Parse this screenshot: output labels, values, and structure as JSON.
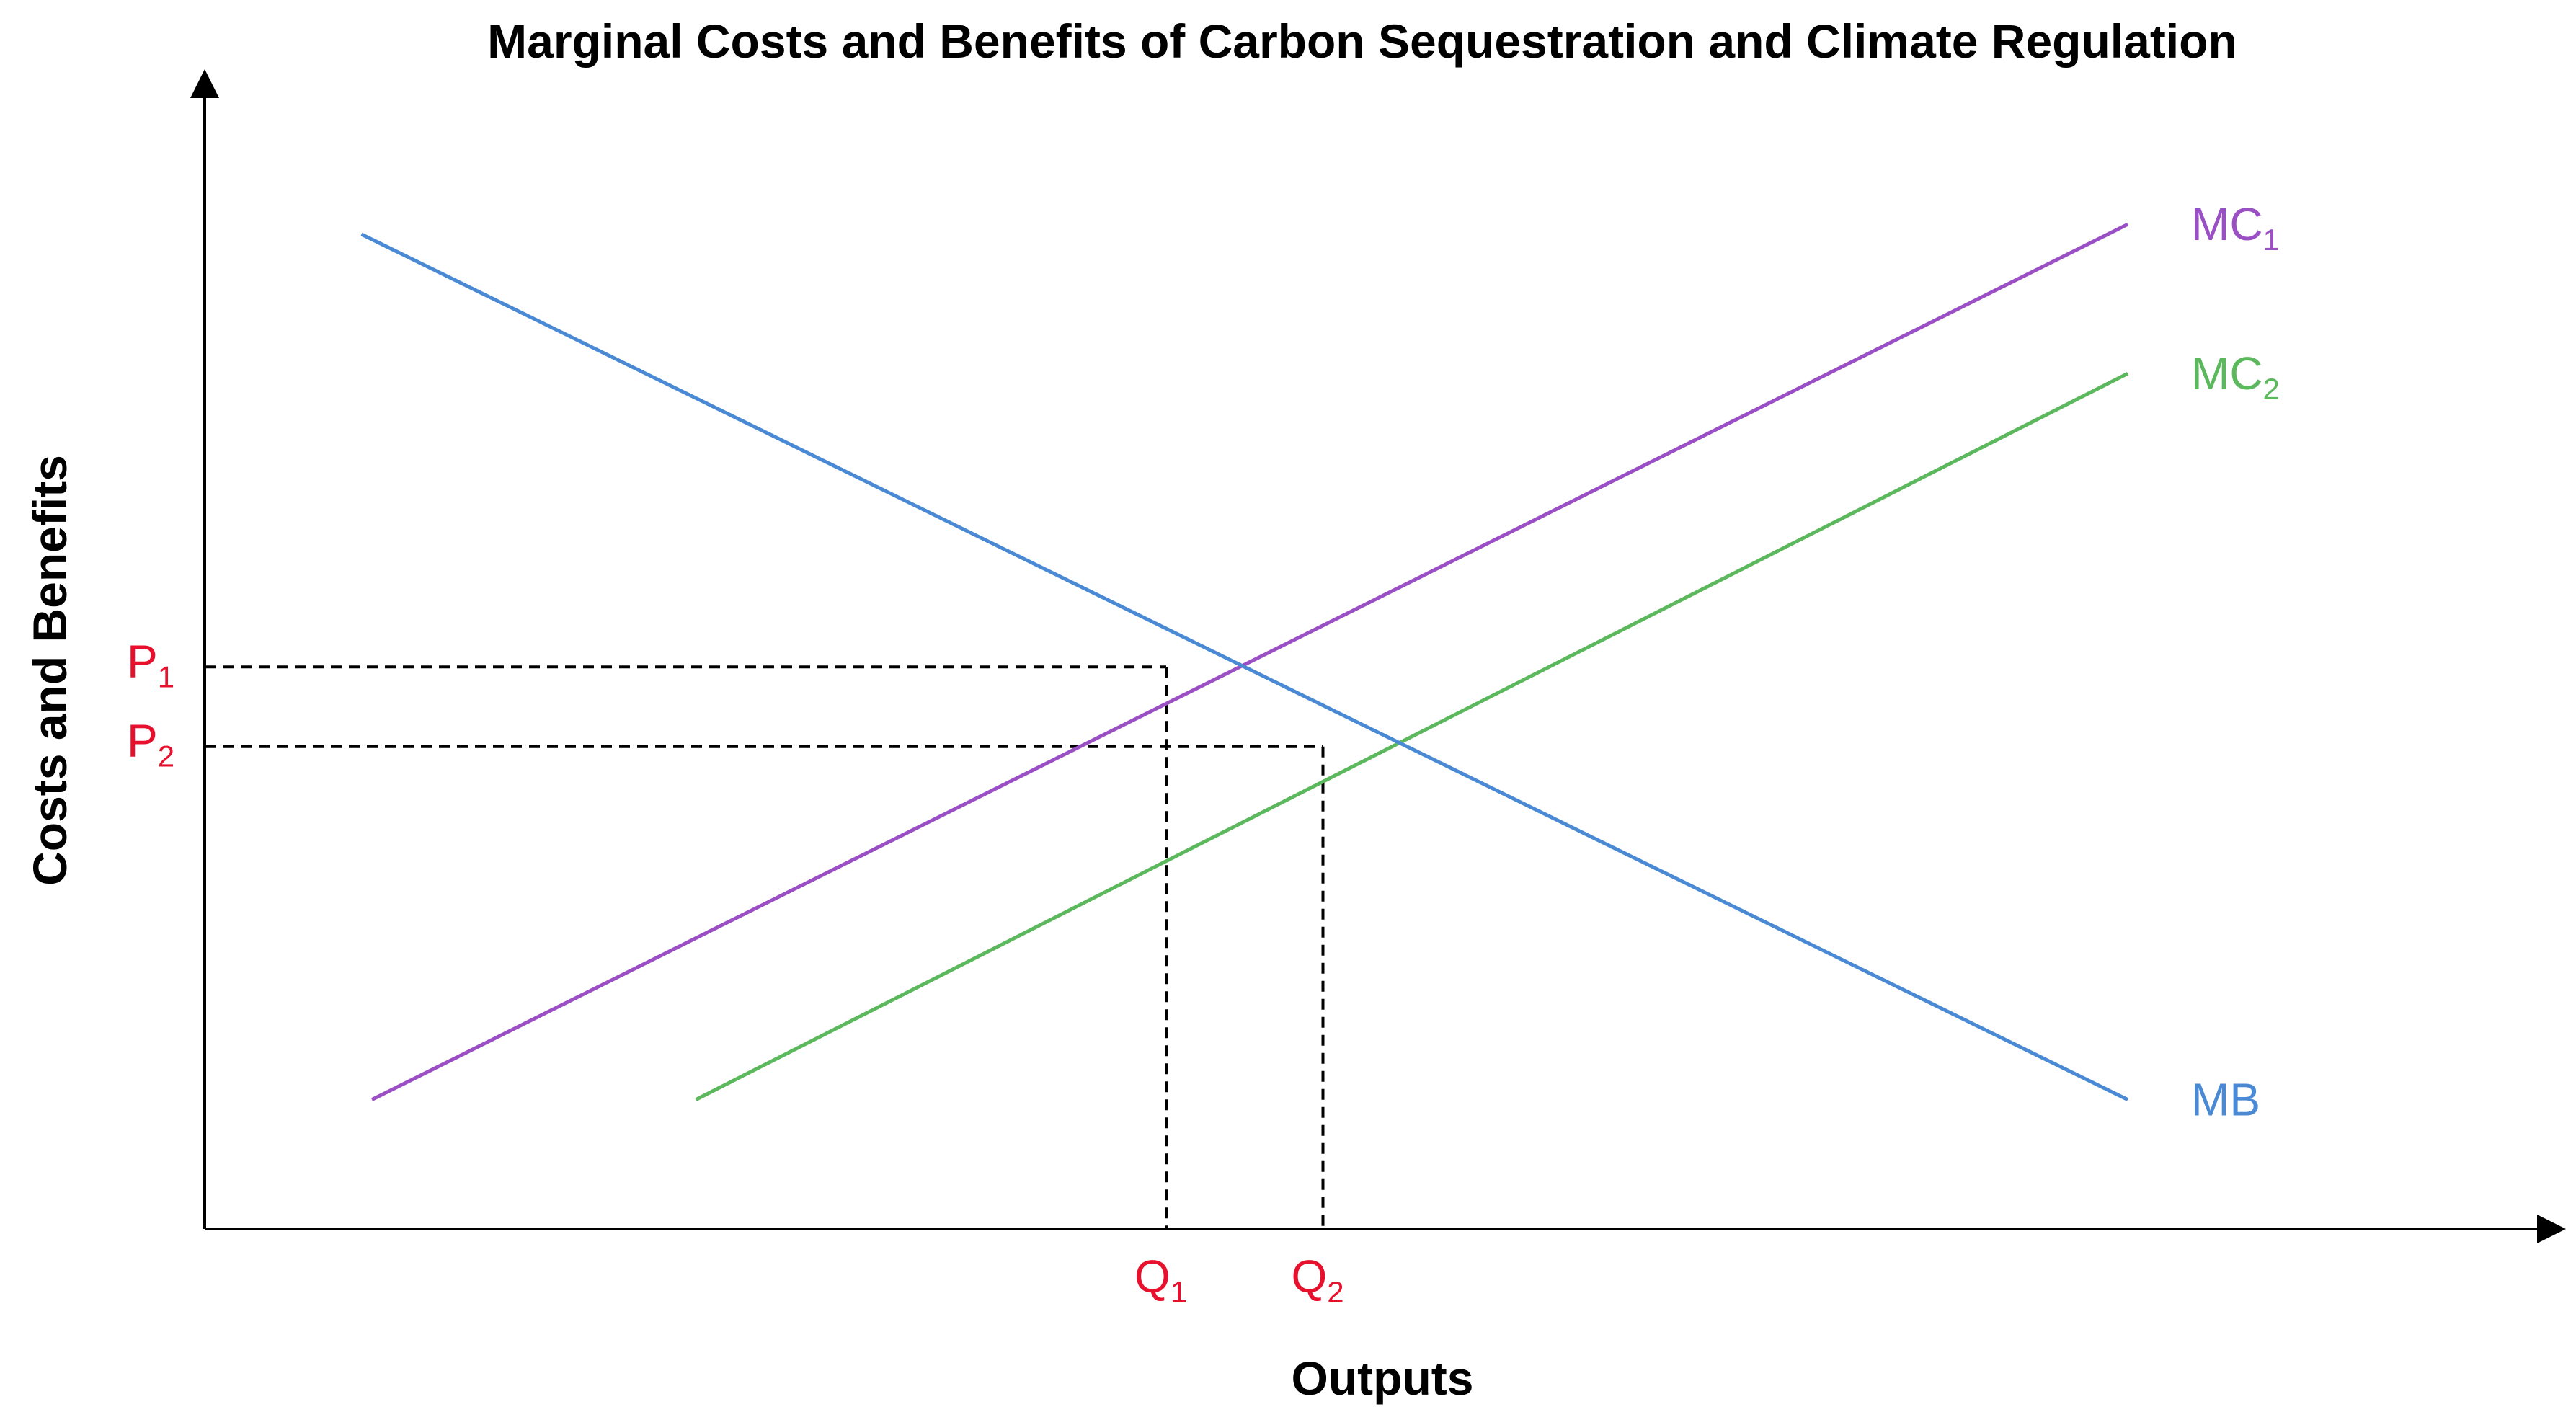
{
  "chart_data": {
    "type": "line",
    "title": "Marginal Costs and Benefits of Carbon Sequestration and Climate Regulation",
    "xlabel": "Outputs",
    "ylabel": "Costs and Benefits",
    "xlim": [
      0,
      100
    ],
    "ylim": [
      0,
      100
    ],
    "grid": false,
    "series": [
      {
        "name": "MC",
        "subscript": "1",
        "color": "#9b4fc4",
        "x": [
          8,
          92
        ],
        "y": [
          13,
          101
        ]
      },
      {
        "name": "MC",
        "subscript": "2",
        "color": "#5cb85c",
        "x": [
          23.5,
          92
        ],
        "y": [
          13,
          86
        ]
      },
      {
        "name": "MB",
        "subscript": "",
        "color": "#4a8ad4",
        "x": [
          7.5,
          92
        ],
        "y": [
          100,
          13
        ]
      }
    ],
    "reference_points": [
      {
        "price": "P",
        "price_sub": "1",
        "quantity": "Q",
        "quantity_sub": "1",
        "x": 46,
        "y": 56.5
      },
      {
        "price": "P",
        "price_sub": "2",
        "quantity": "Q",
        "quantity_sub": "2",
        "x": 53.5,
        "y": 48.5
      }
    ],
    "annotation_color": "#e8112d"
  }
}
